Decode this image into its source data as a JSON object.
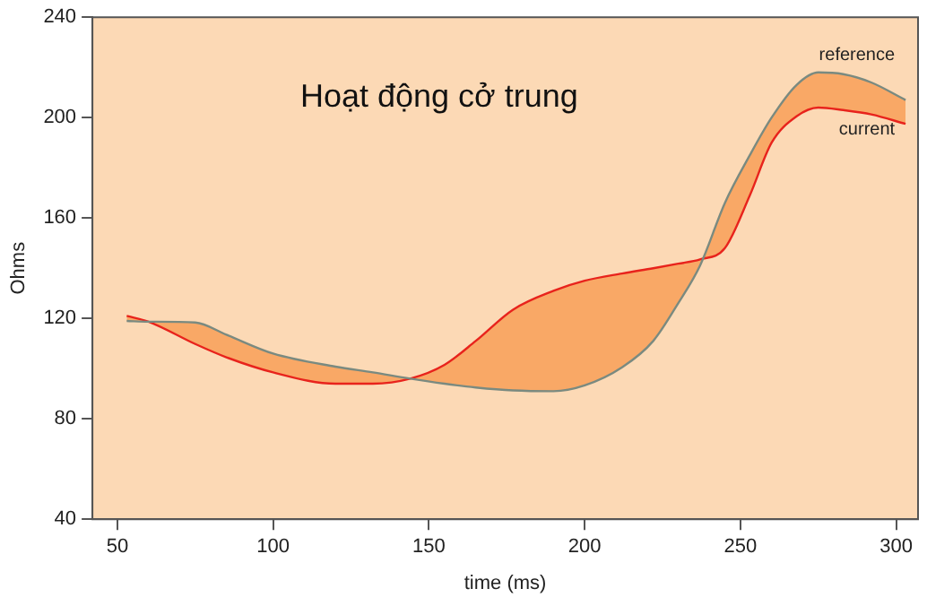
{
  "chart_data": {
    "type": "line",
    "title": "Hoạt động cở trung",
    "xlabel": "time (ms)",
    "ylabel": "Ohms",
    "x": [
      53,
      60,
      75,
      85,
      100,
      120,
      132,
      144,
      155,
      165,
      177,
      190,
      200,
      212,
      222,
      230,
      237,
      245,
      253,
      260,
      268,
      275,
      283,
      292,
      303
    ],
    "series": [
      {
        "name": "reference",
        "color": "#7a8a80",
        "values": [
          119,
          118.7,
          118.4,
          113.5,
          106,
          100.8,
          98.5,
          96,
          94,
          92.5,
          91.3,
          91,
          93.3,
          100.5,
          111,
          126,
          141,
          166,
          185,
          200,
          213,
          218,
          217.3,
          214,
          207
        ]
      },
      {
        "name": "current",
        "color": "#e8231c",
        "values": [
          121,
          118.7,
          109.8,
          104.5,
          98.5,
          94,
          94,
          96,
          101.5,
          111,
          123.5,
          131,
          135,
          137.9,
          140,
          141.8,
          143.5,
          148,
          169,
          190,
          200.5,
          204,
          203,
          201.3,
          197.5
        ]
      }
    ],
    "xlim": [
      42,
      307
    ],
    "ylim": [
      40,
      240
    ],
    "xticks": [
      50,
      100,
      150,
      200,
      250,
      300
    ],
    "yticks": [
      40,
      80,
      120,
      160,
      200,
      240
    ],
    "grid": false,
    "legend": false,
    "marker": "none",
    "line_style": "solid"
  }
}
